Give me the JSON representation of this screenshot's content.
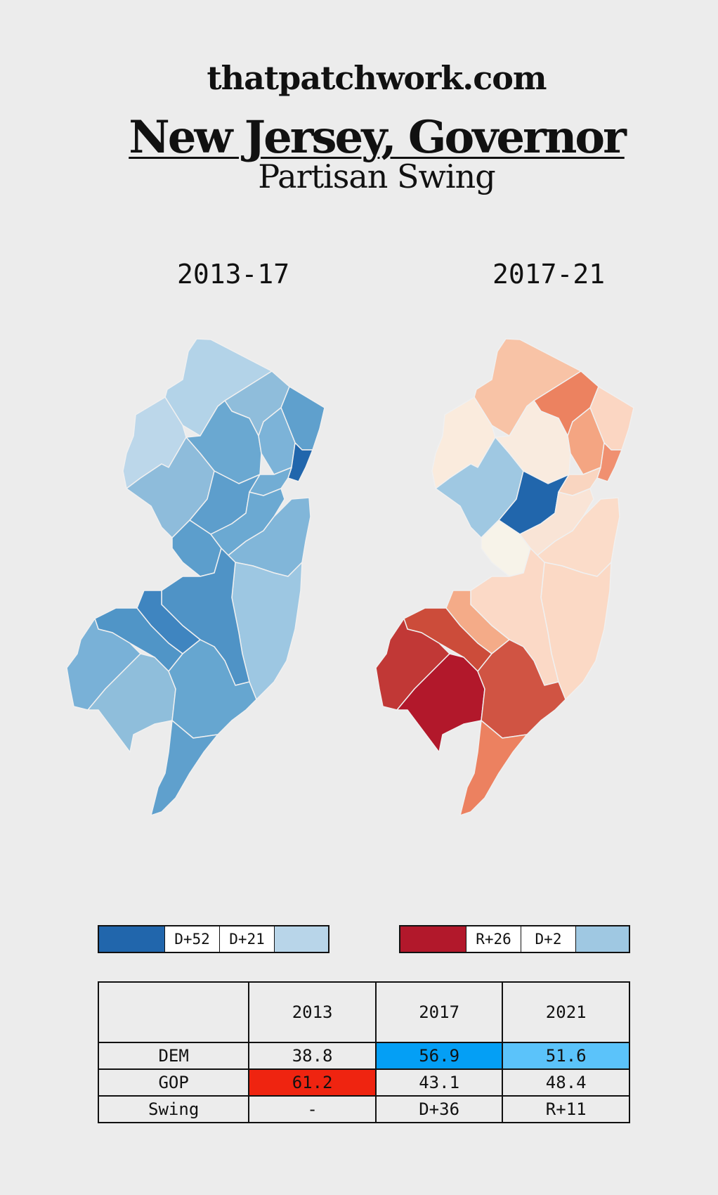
{
  "header": {
    "site": "thatpatchwork.com",
    "title": "New Jersey, Governor",
    "subtitle": "Partisan Swing"
  },
  "maps": [
    {
      "period": "2013-17",
      "legend": {
        "high_label": "D+52",
        "low_label": "D+21",
        "high_color": "#2166ac",
        "low_color": "#b8d5e9"
      },
      "colors": {
        "sussex": "#b3d3e8",
        "warren": "#bcd7ea",
        "passaic": "#8fbddb",
        "bergen": "#5fa0cd",
        "morris": "#6aa8d1",
        "essex": "#7cb3d8",
        "hudson": "#2166ac",
        "hunterdon": "#8ebcdb",
        "somerset": "#5d9ecc",
        "union": "#72add4",
        "mercer": "#5c9ecc",
        "middlesex": "#6ba9d2",
        "monmouth": "#81b6d9",
        "ocean": "#9dc7e2",
        "burlington": "#4f93c6",
        "camden": "#3f85c0",
        "gloucester": "#5095c7",
        "salem": "#79b1d7",
        "cumberland": "#8fbedb",
        "atlantic": "#66a6d0",
        "cape_may": "#5fa0cd"
      }
    },
    {
      "period": "2017-21",
      "legend": {
        "high_label": "R+26",
        "low_label": "D+2",
        "high_color": "#b2182b",
        "low_color": "#9fc8e2"
      },
      "colors": {
        "sussex": "#f8c3a6",
        "warren": "#faebdd",
        "passaic": "#ec8260",
        "bergen": "#fbd6c2",
        "morris": "#f9ebdf",
        "essex": "#f4a582",
        "hudson": "#f09070",
        "hunterdon": "#9fc8e2",
        "somerset": "#2166ac",
        "union": "#f9d5c0",
        "mercer": "#f7f3e9",
        "middlesex": "#f9e4d6",
        "monmouth": "#fbdcc9",
        "ocean": "#fbd9c5",
        "burlington": "#fbd9c6",
        "camden": "#f4ab88",
        "gloucester": "#cc4c3a",
        "salem": "#c13836",
        "cumberland": "#b2182b",
        "atlantic": "#d05443",
        "cape_may": "#ec8160"
      }
    }
  ],
  "table": {
    "header": [
      "",
      "2013",
      "2017",
      "2021"
    ],
    "rows": [
      {
        "label": "DEM",
        "values": [
          "38.8",
          "56.9",
          "51.6"
        ],
        "highlights": [
          "",
          "#049ff5",
          "#5bc3fa"
        ]
      },
      {
        "label": "GOP",
        "values": [
          "61.2",
          "43.1",
          "48.4"
        ],
        "highlights": [
          "#ef2410",
          "",
          ""
        ]
      },
      {
        "label": "Swing",
        "values": [
          "-",
          "D+36",
          "R+11"
        ],
        "highlights": [
          "",
          "",
          ""
        ]
      }
    ]
  }
}
